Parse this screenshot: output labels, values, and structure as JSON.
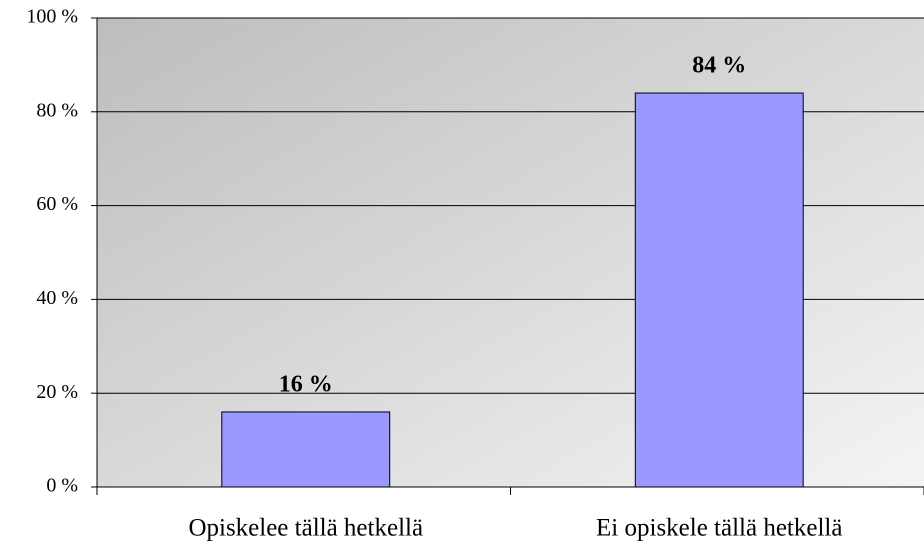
{
  "chart_data": {
    "type": "bar",
    "categories": [
      "Opiskelee tällä hetkellä",
      "Ei opiskele tällä hetkellä"
    ],
    "values": [
      16,
      84
    ],
    "value_labels": [
      "16 %",
      "84 %"
    ],
    "color": "#9999ff",
    "ylim": [
      0,
      100
    ],
    "yticks": [
      {
        "value": 0,
        "label": "0 %"
      },
      {
        "value": 20,
        "label": "20 %"
      },
      {
        "value": 40,
        "label": "40 %"
      },
      {
        "value": 60,
        "label": "60 %"
      },
      {
        "value": 80,
        "label": "80 %"
      },
      {
        "value": 100,
        "label": "100 %"
      }
    ],
    "grid": true
  }
}
